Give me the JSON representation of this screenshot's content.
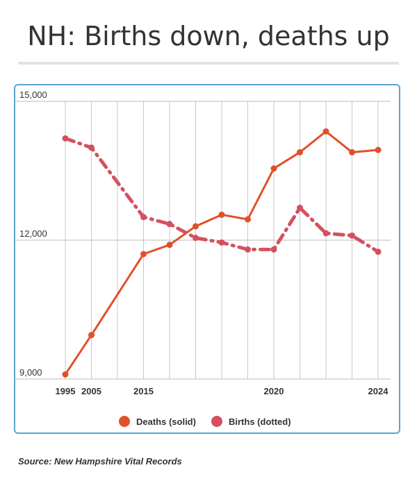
{
  "title": "NH: Births down, deaths up",
  "source": "Source: New Hampshire Vital Records",
  "colors": {
    "deaths": "#e0502a",
    "births": "#d5505f",
    "frame": "#58a6d0",
    "grid": "#cccccc"
  },
  "chart_data": {
    "type": "line",
    "title": "NH: Births down, deaths up",
    "xlabel": "",
    "ylabel": "",
    "ylim": [
      9000,
      15000
    ],
    "yticks": [
      15000,
      12000,
      9000
    ],
    "ytick_labels": [
      "15,000",
      "12,000",
      "9,000"
    ],
    "x": [
      1995,
      2005,
      2010,
      2015,
      2016,
      2017,
      2018,
      2019,
      2020,
      2021,
      2022,
      2023,
      2024
    ],
    "xtick_labels": [
      {
        "x": 1995,
        "label": "1995"
      },
      {
        "x": 2005,
        "label": "2005"
      },
      {
        "x": 2015,
        "label": "2015"
      },
      {
        "x": 2020,
        "label": "2020"
      },
      {
        "x": 2024,
        "label": "2024"
      }
    ],
    "legend_position": "bottom",
    "grid": true,
    "series": [
      {
        "name": "Deaths (solid)",
        "style": "solid",
        "color": "#e0502a",
        "x": [
          1995,
          2005,
          2015,
          2016,
          2017,
          2018,
          2019,
          2020,
          2021,
          2022,
          2023,
          2024
        ],
        "values": [
          9100,
          9950,
          11700,
          11900,
          12300,
          12550,
          12450,
          13550,
          13900,
          14350,
          13900,
          13950
        ]
      },
      {
        "name": "Births (dotted)",
        "style": "dotted",
        "color": "#d5505f",
        "x": [
          1995,
          2005,
          2015,
          2016,
          2017,
          2018,
          2019,
          2020,
          2021,
          2022,
          2023,
          2024
        ],
        "values": [
          14200,
          14000,
          12500,
          12350,
          12050,
          11950,
          11800,
          11800,
          12700,
          12150,
          12100,
          11750
        ]
      }
    ]
  }
}
